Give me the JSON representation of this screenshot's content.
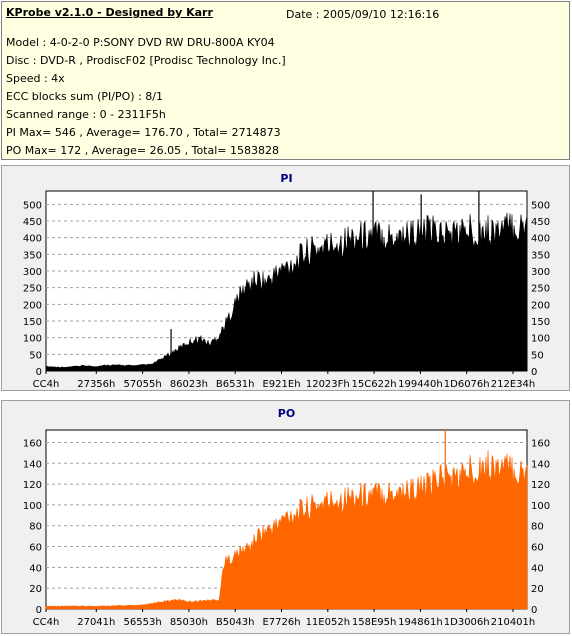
{
  "info": {
    "title": "KProbe v2.1.0 - Designed by Karr",
    "date": "Date : 2005/09/10 12:16:16",
    "model": "Model : 4-0-2-0 P:SONY    DVD RW DRU-800A  KY04",
    "disc": "Disc : DVD-R , ProdiscF02 [Prodisc Technology Inc.]",
    "speed": "Speed : 4x",
    "ecc": "ECC blocks sum (PI/PO) : 8/1",
    "range": "Scanned range : 0 - 2311F5h",
    "pi_stats": "PI Max= 546 , Average= 176.70 , Total= 2714873",
    "po_stats": "PO Max= 172 , Average= 26.05 , Total= 1583828"
  },
  "chart_data": [
    {
      "type": "area",
      "title": "PI",
      "color": "#000000",
      "ylim": [
        0,
        540
      ],
      "yticks": [
        0,
        50,
        100,
        150,
        200,
        250,
        300,
        350,
        400,
        450,
        500
      ],
      "xticks": [
        "CC4h",
        "27356h",
        "57055h",
        "86023h",
        "B6531h",
        "E921Eh",
        "12023Fh",
        "15C622h",
        "199440h",
        "1D6076h",
        "212E34h"
      ],
      "x": [
        0,
        0.04,
        0.08,
        0.1,
        0.13,
        0.18,
        0.22,
        0.25,
        0.27,
        0.28,
        0.3,
        0.32,
        0.34,
        0.36,
        0.38,
        0.4,
        0.42,
        0.44,
        0.46,
        0.48,
        0.5,
        0.52,
        0.54,
        0.56,
        0.58,
        0.6,
        0.64,
        0.68,
        0.72,
        0.76,
        0.8,
        0.84,
        0.88,
        0.92,
        0.96,
        1.0
      ],
      "values": [
        15,
        12,
        18,
        15,
        20,
        18,
        22,
        50,
        70,
        80,
        100,
        110,
        90,
        120,
        180,
        250,
        290,
        310,
        300,
        330,
        350,
        370,
        400,
        410,
        420,
        430,
        450,
        460,
        455,
        465,
        470,
        460,
        475,
        470,
        480,
        485
      ],
      "peaks": [
        {
          "x": 0.26,
          "v": 126
        },
        {
          "x": 0.68,
          "v": 546
        },
        {
          "x": 0.78,
          "v": 530
        },
        {
          "x": 0.9,
          "v": 545
        }
      ]
    },
    {
      "type": "area",
      "title": "PO",
      "color": "#ff6600",
      "ylim": [
        0,
        172
      ],
      "yticks": [
        0,
        20,
        40,
        60,
        80,
        100,
        120,
        140,
        160
      ],
      "xticks": [
        "CC4h",
        "27041h",
        "56553h",
        "85030h",
        "B5043h",
        "E7726h",
        "11E052h",
        "158E95h",
        "194861h",
        "1D3006h",
        "210401h"
      ],
      "x": [
        0,
        0.1,
        0.2,
        0.27,
        0.3,
        0.36,
        0.37,
        0.4,
        0.43,
        0.44,
        0.48,
        0.5,
        0.55,
        0.6,
        0.65,
        0.7,
        0.75,
        0.8,
        0.82,
        0.85,
        0.9,
        0.95,
        1.0
      ],
      "values": [
        3,
        3,
        4,
        10,
        8,
        10,
        50,
        60,
        70,
        80,
        90,
        100,
        110,
        118,
        122,
        125,
        128,
        132,
        145,
        140,
        155,
        152,
        145
      ],
      "peaks": [
        {
          "x": 0.83,
          "v": 172
        }
      ]
    }
  ]
}
